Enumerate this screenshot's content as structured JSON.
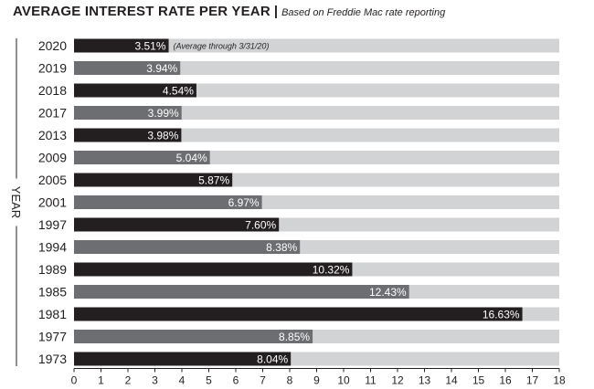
{
  "chart_data": {
    "type": "bar",
    "orientation": "horizontal",
    "title": "AVERAGE INTEREST RATE PER YEAR",
    "subtitle": "Based on Freddie Mac rate reporting",
    "ylabel": "YEAR",
    "xlabel": "",
    "xlim": [
      0,
      18
    ],
    "xticks": [
      0,
      1,
      2,
      3,
      4,
      5,
      6,
      7,
      8,
      9,
      10,
      11,
      12,
      13,
      14,
      15,
      16,
      17,
      18
    ],
    "categories": [
      "2020",
      "2019",
      "2018",
      "2017",
      "2013",
      "2009",
      "2005",
      "2001",
      "1997",
      "1994",
      "1989",
      "1985",
      "1981",
      "1977",
      "1973"
    ],
    "values": [
      3.51,
      3.94,
      4.54,
      3.99,
      3.98,
      5.04,
      5.87,
      6.97,
      7.6,
      8.38,
      10.32,
      12.43,
      16.63,
      8.85,
      8.04
    ],
    "value_labels": [
      "3.51%",
      "3.94%",
      "4.54%",
      "3.99%",
      "3.98%",
      "5.04%",
      "5.87%",
      "6.97%",
      "7.60%",
      "8.38%",
      "10.32%",
      "12.43%",
      "16.63%",
      "8.85%",
      "8.04%"
    ],
    "bar_shades": [
      "dark",
      "gray",
      "dark",
      "gray",
      "dark",
      "gray",
      "dark",
      "gray",
      "dark",
      "gray",
      "dark",
      "gray",
      "dark",
      "gray",
      "dark"
    ],
    "annotations": [
      {
        "category": "2020",
        "text": "(Average through 3/31/20)"
      }
    ],
    "grid": false,
    "legend": "none",
    "colors": {
      "dark": "#231f20",
      "gray": "#6d6e71",
      "track": "#d1d3d4",
      "text": "#231f20",
      "label_on_bar": "#ffffff"
    }
  }
}
